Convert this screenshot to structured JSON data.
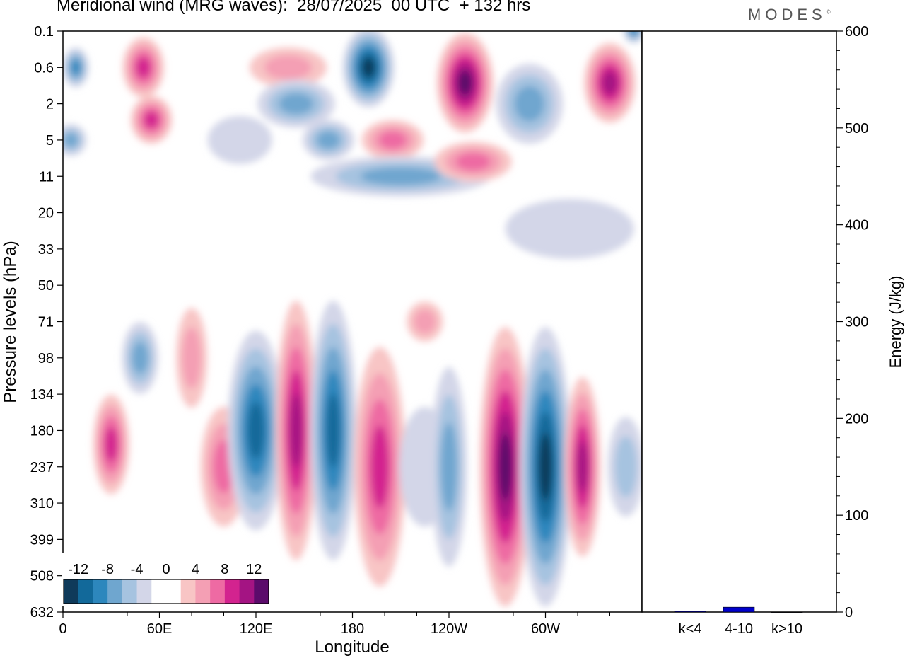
{
  "header": {
    "title": "Meridional wind (MRG waves):  28/07/2025  00 UTC  + 132 hrs",
    "logo": "MODES",
    "logo_mark": "©"
  },
  "colors": {
    "neg": [
      "#0f3a5a",
      "#12699a",
      "#2d87bd",
      "#6fa6cf",
      "#a6c3e0",
      "#d3d6e8"
    ],
    "pos": [
      "#f8c5c5",
      "#f49fb4",
      "#ee6aa3",
      "#d3238f",
      "#a41483",
      "#5b0b6b"
    ],
    "energy_bar": "#0000cc"
  },
  "chart_data": [
    {
      "type": "heatmap",
      "title": "Meridional wind (MRG waves)",
      "xlabel": "Longitude",
      "ylabel": "Pressure levels (hPa)",
      "x_ticks": [
        "0",
        "60E",
        "120E",
        "180",
        "120W",
        "60W"
      ],
      "x_tick_degrees": [
        0,
        60,
        120,
        180,
        240,
        300
      ],
      "x_range_degrees": [
        0,
        360
      ],
      "y_ticks": [
        "0.1",
        "0.6",
        "2",
        "5",
        "11",
        "20",
        "33",
        "50",
        "71",
        "98",
        "134",
        "180",
        "237",
        "310",
        "399",
        "508",
        "632"
      ],
      "colorbar": {
        "labels": [
          "-12",
          "-8",
          "-4",
          "0",
          "4",
          "8",
          "12"
        ],
        "levels": [
          -14,
          -12,
          -10,
          -8,
          -6,
          -4,
          -2,
          2,
          4,
          6,
          8,
          10,
          12,
          14
        ]
      },
      "features": [
        {
          "lon": 8,
          "level": 0.6,
          "wind": -10,
          "lon_width": 10,
          "level_span": 1.0
        },
        {
          "lon": 50,
          "level": 0.6,
          "wind": 10,
          "lon_width": 16,
          "level_span": 1.5
        },
        {
          "lon": 55,
          "level": 3,
          "wind": 10,
          "lon_width": 16,
          "level_span": 1.2
        },
        {
          "lon": 5,
          "level": 5,
          "wind": -6,
          "lon_width": 12,
          "level_span": 0.8
        },
        {
          "lon": 110,
          "level": 5,
          "wind": -3,
          "lon_width": 25,
          "level_span": 1.2
        },
        {
          "lon": 140,
          "level": 0.6,
          "wind": 5,
          "lon_width": 30,
          "level_span": 1.0
        },
        {
          "lon": 145,
          "level": 2,
          "wind": -8,
          "lon_width": 30,
          "level_span": 1.2
        },
        {
          "lon": 190,
          "level": 0.6,
          "wind": -14,
          "lon_width": 20,
          "level_span": 2.0
        },
        {
          "lon": 165,
          "level": 5,
          "wind": -8,
          "lon_width": 20,
          "level_span": 1.0
        },
        {
          "lon": 205,
          "level": 5,
          "wind": 8,
          "lon_width": 24,
          "level_span": 1.0
        },
        {
          "lon": 210,
          "level": 11,
          "wind": -6,
          "lon_width": 70,
          "level_span": 1.0
        },
        {
          "lon": 250,
          "level": 1,
          "wind": 13,
          "lon_width": 22,
          "level_span": 2.5
        },
        {
          "lon": 255,
          "level": 8,
          "wind": 8,
          "lon_width": 30,
          "level_span": 1.0
        },
        {
          "lon": 290,
          "level": 2,
          "wind": -7,
          "lon_width": 26,
          "level_span": 2.0
        },
        {
          "lon": 340,
          "level": 1,
          "wind": 12,
          "lon_width": 20,
          "level_span": 2.0
        },
        {
          "lon": 355,
          "level": 0.1,
          "wind": -9,
          "lon_width": 8,
          "level_span": 0.6
        },
        {
          "lon": 315,
          "level": 25,
          "wind": -3,
          "lon_width": 50,
          "level_span": 1.5
        },
        {
          "lon": 48,
          "level": 98,
          "wind": -6,
          "lon_width": 14,
          "level_span": 1.8
        },
        {
          "lon": 30,
          "level": 200,
          "wind": 9,
          "lon_width": 14,
          "level_span": 2.5
        },
        {
          "lon": 80,
          "level": 98,
          "wind": 5,
          "lon_width": 12,
          "level_span": 2.5
        },
        {
          "lon": 100,
          "level": 237,
          "wind": 6,
          "lon_width": 18,
          "level_span": 3.0
        },
        {
          "lon": 120,
          "level": 180,
          "wind": -12,
          "lon_width": 22,
          "level_span": 5.0
        },
        {
          "lon": 145,
          "level": 180,
          "wind": 11,
          "lon_width": 16,
          "level_span": 6.5
        },
        {
          "lon": 168,
          "level": 180,
          "wind": -12,
          "lon_width": 18,
          "level_span": 6.5
        },
        {
          "lon": 197,
          "level": 237,
          "wind": 9,
          "lon_width": 20,
          "level_span": 6.0
        },
        {
          "lon": 225,
          "level": 237,
          "wind": -2,
          "lon_width": 20,
          "level_span": 3.0
        },
        {
          "lon": 240,
          "level": 237,
          "wind": -6,
          "lon_width": 14,
          "level_span": 5.0
        },
        {
          "lon": 275,
          "level": 237,
          "wind": 15,
          "lon_width": 20,
          "level_span": 7.0
        },
        {
          "lon": 300,
          "level": 237,
          "wind": -13,
          "lon_width": 20,
          "level_span": 7.0
        },
        {
          "lon": 323,
          "level": 237,
          "wind": 12,
          "lon_width": 14,
          "level_span": 4.5
        },
        {
          "lon": 350,
          "level": 237,
          "wind": -4,
          "lon_width": 14,
          "level_span": 2.5
        },
        {
          "lon": 225,
          "level": 71,
          "wind": 5,
          "lon_width": 14,
          "level_span": 1.0
        }
      ]
    },
    {
      "type": "bar",
      "ylabel": "Energy (J/kg)",
      "categories": [
        "k<4",
        "4-10",
        "k>10"
      ],
      "values": [
        1,
        5,
        0
      ],
      "ylim": [
        0,
        600
      ],
      "y_ticks": [
        "0",
        "100",
        "200",
        "300",
        "400",
        "500",
        "600"
      ]
    }
  ]
}
